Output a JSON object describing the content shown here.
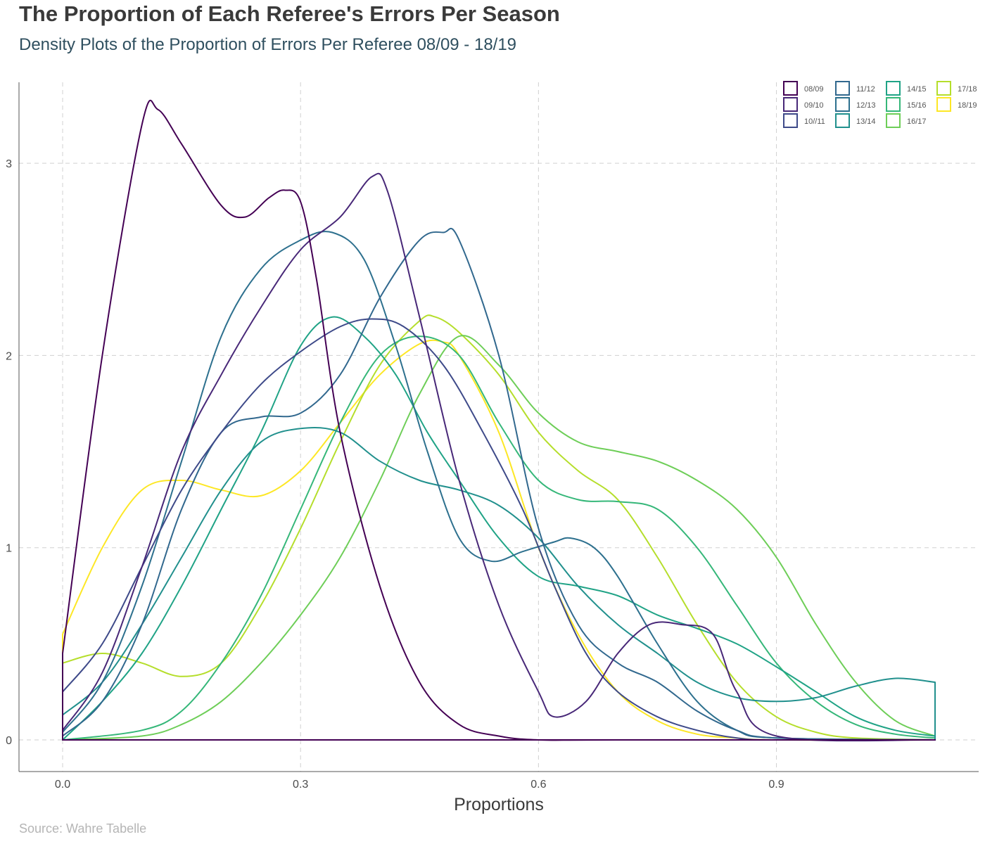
{
  "title": "The Proportion of Each Referee's Errors Per Season",
  "subtitle": "Density Plots of the Proportion of Errors Per Referee 08/09 - 18/19",
  "caption": "Source: Wahre Tabelle",
  "chart_data": {
    "type": "area",
    "xlabel": "Proportions",
    "ylabel": "",
    "xlim": [
      0,
      1.1
    ],
    "ylim": [
      0,
      3.3
    ],
    "x_ticks": [
      0.0,
      0.3,
      0.6,
      0.9
    ],
    "x_tick_labels": [
      "0.0",
      "0.3",
      "0.6",
      "0.9"
    ],
    "y_ticks": [
      0,
      1,
      2,
      3
    ],
    "y_tick_labels": [
      "0",
      "1",
      "2",
      "3"
    ],
    "grid": true,
    "legend_position": "top-right",
    "series": [
      {
        "name": "08/09",
        "color": "#440154",
        "x": [
          0.0,
          0.05,
          0.1,
          0.12,
          0.15,
          0.2,
          0.23,
          0.26,
          0.28,
          0.3,
          0.32,
          0.35,
          0.4,
          0.45,
          0.5,
          0.55,
          0.6,
          0.7,
          1.1
        ],
        "y": [
          0.45,
          2.0,
          3.2,
          3.28,
          3.1,
          2.78,
          2.72,
          2.82,
          2.86,
          2.8,
          2.4,
          1.6,
          0.8,
          0.3,
          0.08,
          0.02,
          0.0,
          0.0,
          0.0
        ]
      },
      {
        "name": "09/10",
        "color": "#482878",
        "x": [
          0.0,
          0.05,
          0.1,
          0.15,
          0.2,
          0.25,
          0.3,
          0.35,
          0.39,
          0.41,
          0.45,
          0.5,
          0.55,
          0.6,
          0.62,
          0.66,
          0.7,
          0.74,
          0.78,
          0.82,
          0.85,
          0.9,
          1.1
        ],
        "y": [
          0.05,
          0.35,
          0.9,
          1.5,
          1.9,
          2.25,
          2.55,
          2.72,
          2.93,
          2.85,
          2.2,
          1.35,
          0.7,
          0.25,
          0.12,
          0.2,
          0.45,
          0.6,
          0.6,
          0.55,
          0.25,
          0.02,
          0.0
        ]
      },
      {
        "name": "10//11",
        "color": "#3e4a89",
        "x": [
          0.0,
          0.05,
          0.1,
          0.15,
          0.2,
          0.25,
          0.3,
          0.35,
          0.39,
          0.43,
          0.48,
          0.53,
          0.58,
          0.62,
          0.66,
          0.7,
          0.75,
          0.8,
          0.85,
          0.9,
          1.1
        ],
        "y": [
          0.25,
          0.5,
          0.9,
          1.3,
          1.6,
          1.85,
          2.02,
          2.15,
          2.19,
          2.15,
          1.95,
          1.6,
          1.2,
          0.8,
          0.45,
          0.25,
          0.12,
          0.05,
          0.01,
          0.0,
          0.0
        ]
      },
      {
        "name": "11/12",
        "color": "#31688e",
        "x": [
          0.0,
          0.05,
          0.1,
          0.15,
          0.2,
          0.25,
          0.3,
          0.35,
          0.4,
          0.45,
          0.48,
          0.5,
          0.55,
          0.6,
          0.65,
          0.7,
          0.75,
          0.8,
          0.85,
          0.9,
          1.1
        ],
        "y": [
          0.02,
          0.2,
          0.6,
          1.2,
          1.6,
          1.68,
          1.7,
          1.9,
          2.3,
          2.6,
          2.64,
          2.6,
          2.0,
          1.1,
          0.6,
          0.4,
          0.3,
          0.15,
          0.05,
          0.01,
          0.0
        ]
      },
      {
        "name": "12/13",
        "color": "#2d708e",
        "x": [
          0.0,
          0.05,
          0.1,
          0.15,
          0.2,
          0.25,
          0.3,
          0.34,
          0.38,
          0.42,
          0.46,
          0.5,
          0.54,
          0.58,
          0.62,
          0.64,
          0.67,
          0.7,
          0.75,
          0.8,
          0.85,
          0.9,
          1.1
        ],
        "y": [
          0.04,
          0.3,
          0.8,
          1.45,
          2.1,
          2.45,
          2.6,
          2.64,
          2.5,
          2.05,
          1.5,
          1.05,
          0.93,
          0.98,
          1.03,
          1.05,
          1.0,
          0.85,
          0.5,
          0.2,
          0.05,
          0.01,
          0.0
        ]
      },
      {
        "name": "13/14",
        "color": "#21908d",
        "x": [
          0.0,
          0.05,
          0.1,
          0.15,
          0.2,
          0.25,
          0.3,
          0.35,
          0.4,
          0.45,
          0.5,
          0.55,
          0.6,
          0.65,
          0.7,
          0.75,
          0.8,
          0.85,
          0.9,
          0.95,
          1.0,
          1.05,
          1.1
        ],
        "y": [
          0.13,
          0.3,
          0.6,
          0.95,
          1.3,
          1.55,
          1.62,
          1.6,
          1.45,
          1.35,
          1.3,
          1.22,
          1.05,
          0.8,
          0.6,
          0.45,
          0.3,
          0.22,
          0.2,
          0.22,
          0.28,
          0.32,
          0.3
        ]
      },
      {
        "name": "14/15",
        "color": "#20a386",
        "x": [
          0.0,
          0.05,
          0.1,
          0.15,
          0.2,
          0.25,
          0.3,
          0.34,
          0.38,
          0.42,
          0.46,
          0.5,
          0.55,
          0.6,
          0.65,
          0.7,
          0.75,
          0.8,
          0.85,
          0.9,
          0.95,
          1.0,
          1.05,
          1.1
        ],
        "y": [
          0.0,
          0.2,
          0.45,
          0.8,
          1.2,
          1.6,
          2.05,
          2.2,
          2.1,
          1.9,
          1.6,
          1.35,
          1.05,
          0.85,
          0.8,
          0.75,
          0.65,
          0.58,
          0.5,
          0.38,
          0.25,
          0.12,
          0.05,
          0.02
        ]
      },
      {
        "name": "15/16",
        "color": "#35b779",
        "x": [
          0.0,
          0.1,
          0.15,
          0.2,
          0.25,
          0.3,
          0.35,
          0.4,
          0.45,
          0.5,
          0.55,
          0.6,
          0.65,
          0.7,
          0.75,
          0.8,
          0.85,
          0.9,
          0.95,
          1.0,
          1.05,
          1.1
        ],
        "y": [
          0.0,
          0.05,
          0.15,
          0.4,
          0.75,
          1.2,
          1.65,
          2.0,
          2.1,
          2.0,
          1.65,
          1.35,
          1.25,
          1.24,
          1.2,
          1.0,
          0.7,
          0.4,
          0.2,
          0.08,
          0.03,
          0.01
        ]
      },
      {
        "name": "16/17",
        "color": "#6ece58",
        "x": [
          0.0,
          0.1,
          0.15,
          0.2,
          0.25,
          0.3,
          0.35,
          0.4,
          0.45,
          0.5,
          0.55,
          0.6,
          0.65,
          0.7,
          0.75,
          0.8,
          0.85,
          0.9,
          0.95,
          1.0,
          1.05,
          1.1
        ],
        "y": [
          0.0,
          0.02,
          0.08,
          0.2,
          0.4,
          0.65,
          0.95,
          1.35,
          1.8,
          2.1,
          1.95,
          1.7,
          1.55,
          1.5,
          1.45,
          1.35,
          1.2,
          0.95,
          0.6,
          0.3,
          0.1,
          0.02
        ]
      },
      {
        "name": "17/18",
        "color": "#b5de2b",
        "x": [
          0.0,
          0.05,
          0.1,
          0.15,
          0.2,
          0.25,
          0.3,
          0.35,
          0.4,
          0.45,
          0.47,
          0.5,
          0.55,
          0.6,
          0.65,
          0.7,
          0.75,
          0.8,
          0.85,
          0.9,
          0.95,
          1.0,
          1.1
        ],
        "y": [
          0.4,
          0.45,
          0.4,
          0.33,
          0.4,
          0.7,
          1.1,
          1.55,
          1.95,
          2.18,
          2.2,
          2.12,
          1.9,
          1.6,
          1.4,
          1.25,
          0.95,
          0.6,
          0.3,
          0.12,
          0.04,
          0.01,
          0.0
        ]
      },
      {
        "name": "18/19",
        "color": "#fde725",
        "x": [
          0.0,
          0.05,
          0.1,
          0.15,
          0.2,
          0.25,
          0.3,
          0.35,
          0.4,
          0.45,
          0.48,
          0.5,
          0.55,
          0.6,
          0.65,
          0.7,
          0.75,
          0.8,
          0.85,
          0.9,
          1.1
        ],
        "y": [
          0.55,
          1.0,
          1.3,
          1.35,
          1.3,
          1.27,
          1.4,
          1.65,
          1.9,
          2.06,
          2.07,
          2.0,
          1.6,
          1.0,
          0.55,
          0.25,
          0.1,
          0.03,
          0.01,
          0.0,
          0.0
        ]
      }
    ]
  }
}
